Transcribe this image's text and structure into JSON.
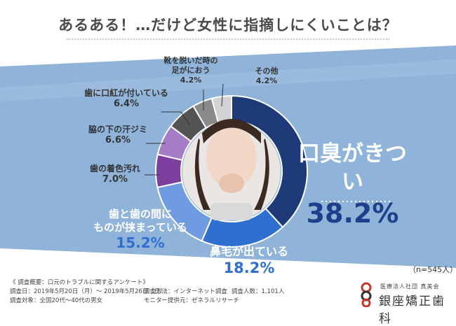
{
  "title": "あるある！…だけど女性に指摘しにくいことは？",
  "sample_note": "（n=545人）",
  "survey": {
    "heading": "《 調査概要：口元のトラブルに関するアンケート》",
    "period": "調査日：2019年5月20日（月）～ 2019年5月26日（日）",
    "target": "調査対象：全国20代～40代の男女",
    "method": "調査方法：インターネット調査",
    "provider": "モニター提供元：ゼネラルリサーチ",
    "count": "調査人数：1,101人"
  },
  "clinic": {
    "small": "医療法人社団 真美会",
    "name": "銀座矯正歯科"
  },
  "colors": {
    "background_band": "#8fb3d9",
    "highlight": "#1e3f8a",
    "pct_blue": "#2f6fd0"
  },
  "chart_data": {
    "type": "pie",
    "style": "donut",
    "title": "あるある！…だけど女性に指摘しにくいことは？",
    "unit": "%",
    "slices": [
      {
        "label": "口臭がきつい",
        "value": 38.2,
        "color": "#1e3a78"
      },
      {
        "label": "鼻毛が出ている",
        "value": 18.2,
        "color": "#2f6fd0"
      },
      {
        "label": "歯と歯の間にものが挟まっている",
        "value": 15.2,
        "color": "#6f9be0"
      },
      {
        "label": "歯の着色汚れ",
        "value": 7.0,
        "color": "#7d3f9e"
      },
      {
        "label": "脇の下の汗ジミ",
        "value": 6.6,
        "color": "#a57cc8"
      },
      {
        "label": "歯に口紅が付いている",
        "value": 6.4,
        "color": "#545454"
      },
      {
        "label": "靴を脱いだ時の足がにおう",
        "value": 4.2,
        "color": "#8a8a8a"
      },
      {
        "label": "その他",
        "value": 4.2,
        "color": "#d2d2d2"
      }
    ],
    "display": [
      {
        "line1": "口臭がきつい",
        "line2": "",
        "pct": "38.2%"
      },
      {
        "line1": "鼻毛が出ている",
        "line2": "",
        "pct": "18.2%"
      },
      {
        "line1": "歯と歯の間に",
        "line2": "ものが挟まっている",
        "pct": "15.2%"
      },
      {
        "line1": "歯の着色汚れ",
        "line2": "",
        "pct": "7.0%"
      },
      {
        "line1": "脇の下の汗ジミ",
        "line2": "",
        "pct": "6.6%"
      },
      {
        "line1": "歯に口紅が付いている",
        "line2": "",
        "pct": "6.4%"
      },
      {
        "line1": "靴を脱いだ時の",
        "line2": "足がにおう",
        "pct": "4.2%"
      },
      {
        "line1": "その他",
        "line2": "",
        "pct": "4.2%"
      }
    ],
    "legend": "none"
  }
}
